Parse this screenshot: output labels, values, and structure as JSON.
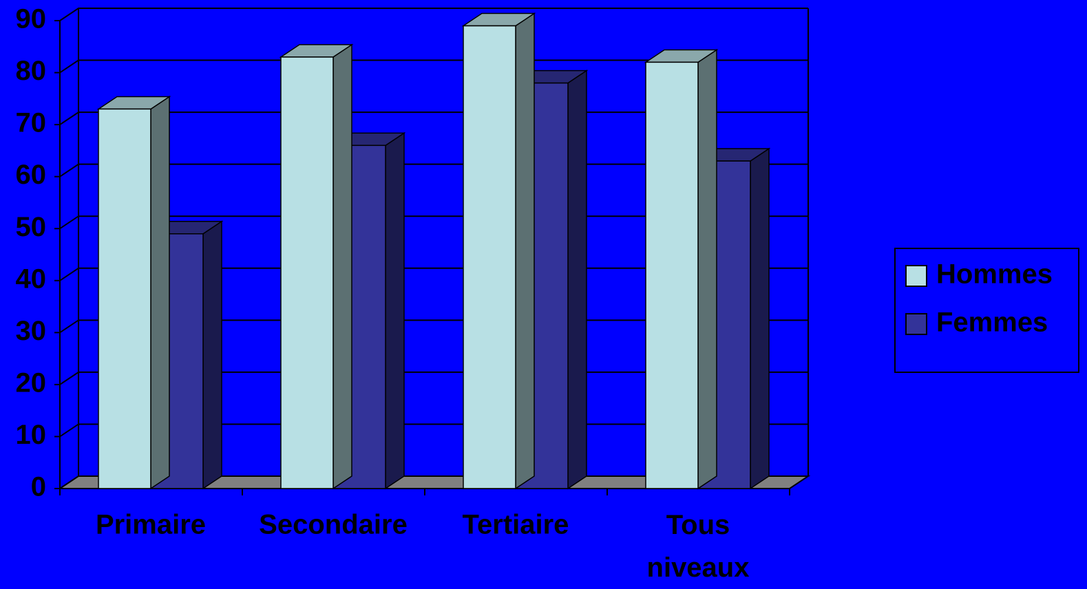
{
  "chart_data": {
    "type": "bar3d",
    "categories": [
      "Primaire",
      "Secondaire",
      "Tertiaire",
      "Tous niveaux"
    ],
    "series": [
      {
        "name": "Hommes",
        "color": "#b8e0e4",
        "values": [
          73,
          83,
          89,
          82
        ]
      },
      {
        "name": "Femmes",
        "color": "#333399",
        "values": [
          49,
          66,
          78,
          63
        ]
      }
    ],
    "ylim": [
      0,
      90
    ],
    "yticks": [
      0,
      10,
      20,
      30,
      40,
      50,
      60,
      70,
      80,
      90
    ],
    "grid": true,
    "legend": "right"
  }
}
